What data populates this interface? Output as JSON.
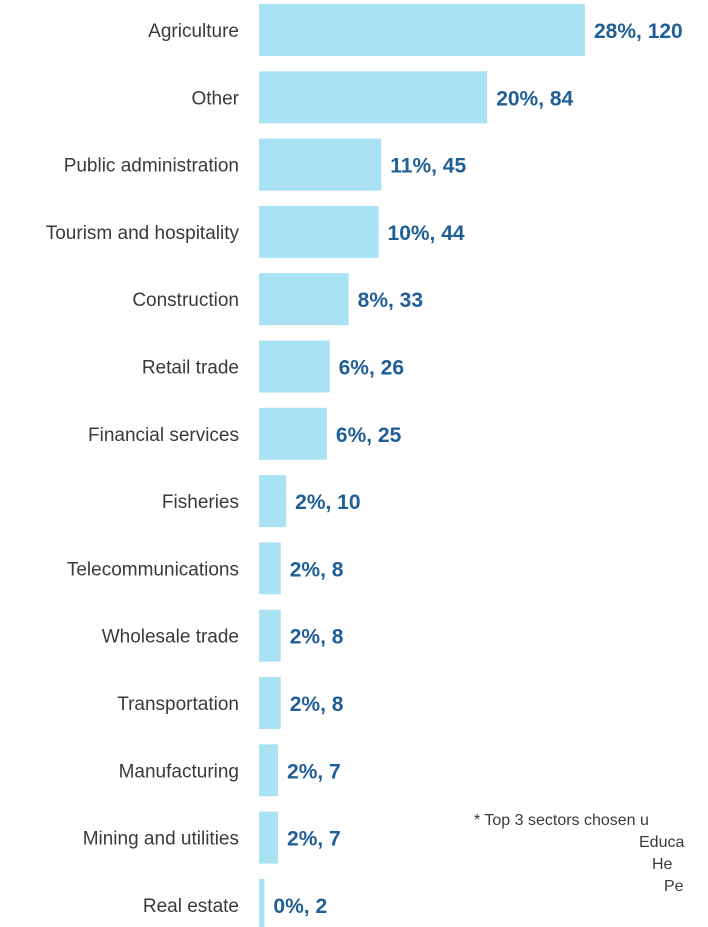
{
  "chart_data": {
    "type": "bar",
    "orientation": "horizontal",
    "title": "",
    "xlabel": "",
    "ylabel": "",
    "categories": [
      "Agriculture",
      "Other",
      "Public administration",
      "Tourism and hospitality",
      "Construction",
      "Retail trade",
      "Financial services",
      "Fisheries",
      "Telecommunications",
      "Wholesale trade",
      "Transportation",
      "Manufacturing",
      "Mining and utilities",
      "Real estate"
    ],
    "values": [
      120,
      84,
      45,
      44,
      33,
      26,
      25,
      10,
      8,
      8,
      8,
      7,
      7,
      2
    ],
    "data_labels": [
      "28%, 120",
      "20%, 84",
      "11%, 45",
      "10%, 44",
      "8%, 33",
      "6%, 26",
      "6%, 25",
      "2%, 10",
      "2%, 8",
      "2%, 8",
      "2%, 8",
      "2%, 7",
      "2%, 7",
      "0%, 2"
    ],
    "xlim": [
      0,
      120
    ],
    "grid": false,
    "legend": "none",
    "colors": {
      "bar": "#a9e3f3",
      "label": "#1f5f96",
      "category": "#3a3a3a"
    }
  },
  "footnote": {
    "line1": "* Top 3 sectors chosen u",
    "line2": "Educa",
    "line3": "He",
    "line4": "Pe"
  }
}
